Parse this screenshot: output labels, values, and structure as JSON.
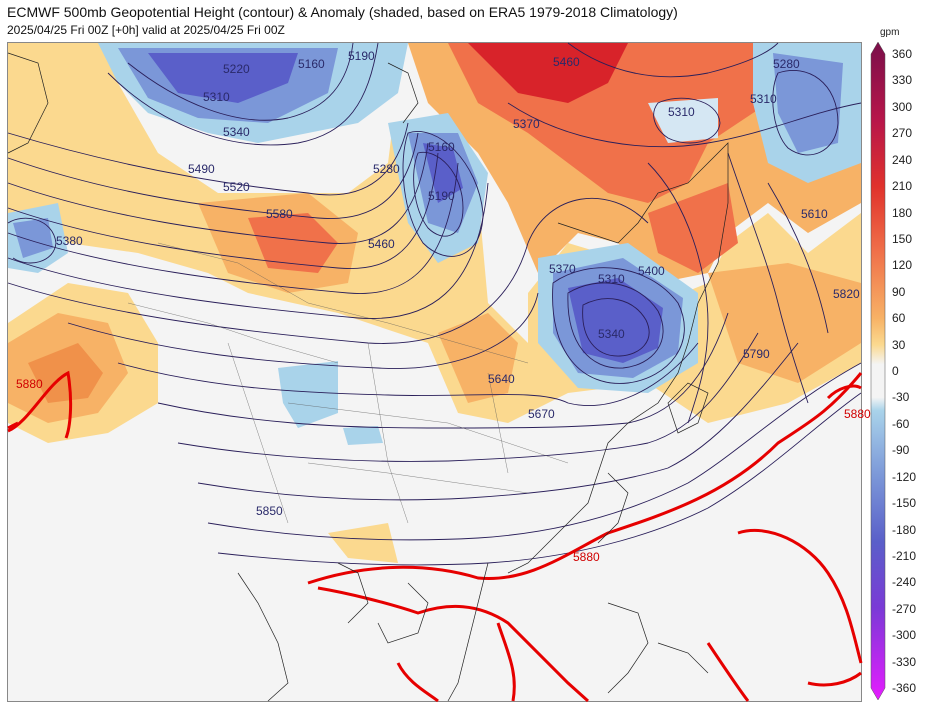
{
  "header": {
    "title": "ECMWF 500mb Geopotential Height (contour) & Anomaly (shaded, based on ERA5 1979-2018 Climatology)",
    "subtitle": "2025/04/25 Fri 00Z [+0h] valid at 2025/04/25 Fri 00Z"
  },
  "colorbar": {
    "unit": "gpm",
    "ticks": [
      "360",
      "330",
      "300",
      "270",
      "240",
      "210",
      "180",
      "150",
      "120",
      "90",
      "60",
      "30",
      "0",
      "-30",
      "-60",
      "-90",
      "-120",
      "-150",
      "-180",
      "-210",
      "-240",
      "-270",
      "-300",
      "-330",
      "-360"
    ]
  },
  "contour_labels": [
    "5220",
    "5160",
    "5190",
    "5310",
    "5340",
    "5160",
    "5190",
    "5280",
    "5460",
    "5370",
    "5310",
    "5280",
    "5310",
    "5490",
    "5520",
    "5580",
    "5380",
    "5460",
    "5370",
    "5310",
    "5400",
    "5610",
    "5340",
    "5820",
    "5640",
    "5670",
    "5790",
    "5880",
    "5850",
    "5880",
    "5880"
  ],
  "colors": {
    "warm_strong": "#d8232a",
    "warm_mid": "#f0714a",
    "warm_light": "#f7b266",
    "warm_pale": "#fbd98f",
    "cool_light": "#a9d3ea",
    "cool_mid": "#7b97d8",
    "cool_strong": "#5a5fc9",
    "neutral": "#f4f4f4",
    "ridge_line": "#e60000",
    "contour_line": "#2a1f5a",
    "coast": "#222222"
  }
}
